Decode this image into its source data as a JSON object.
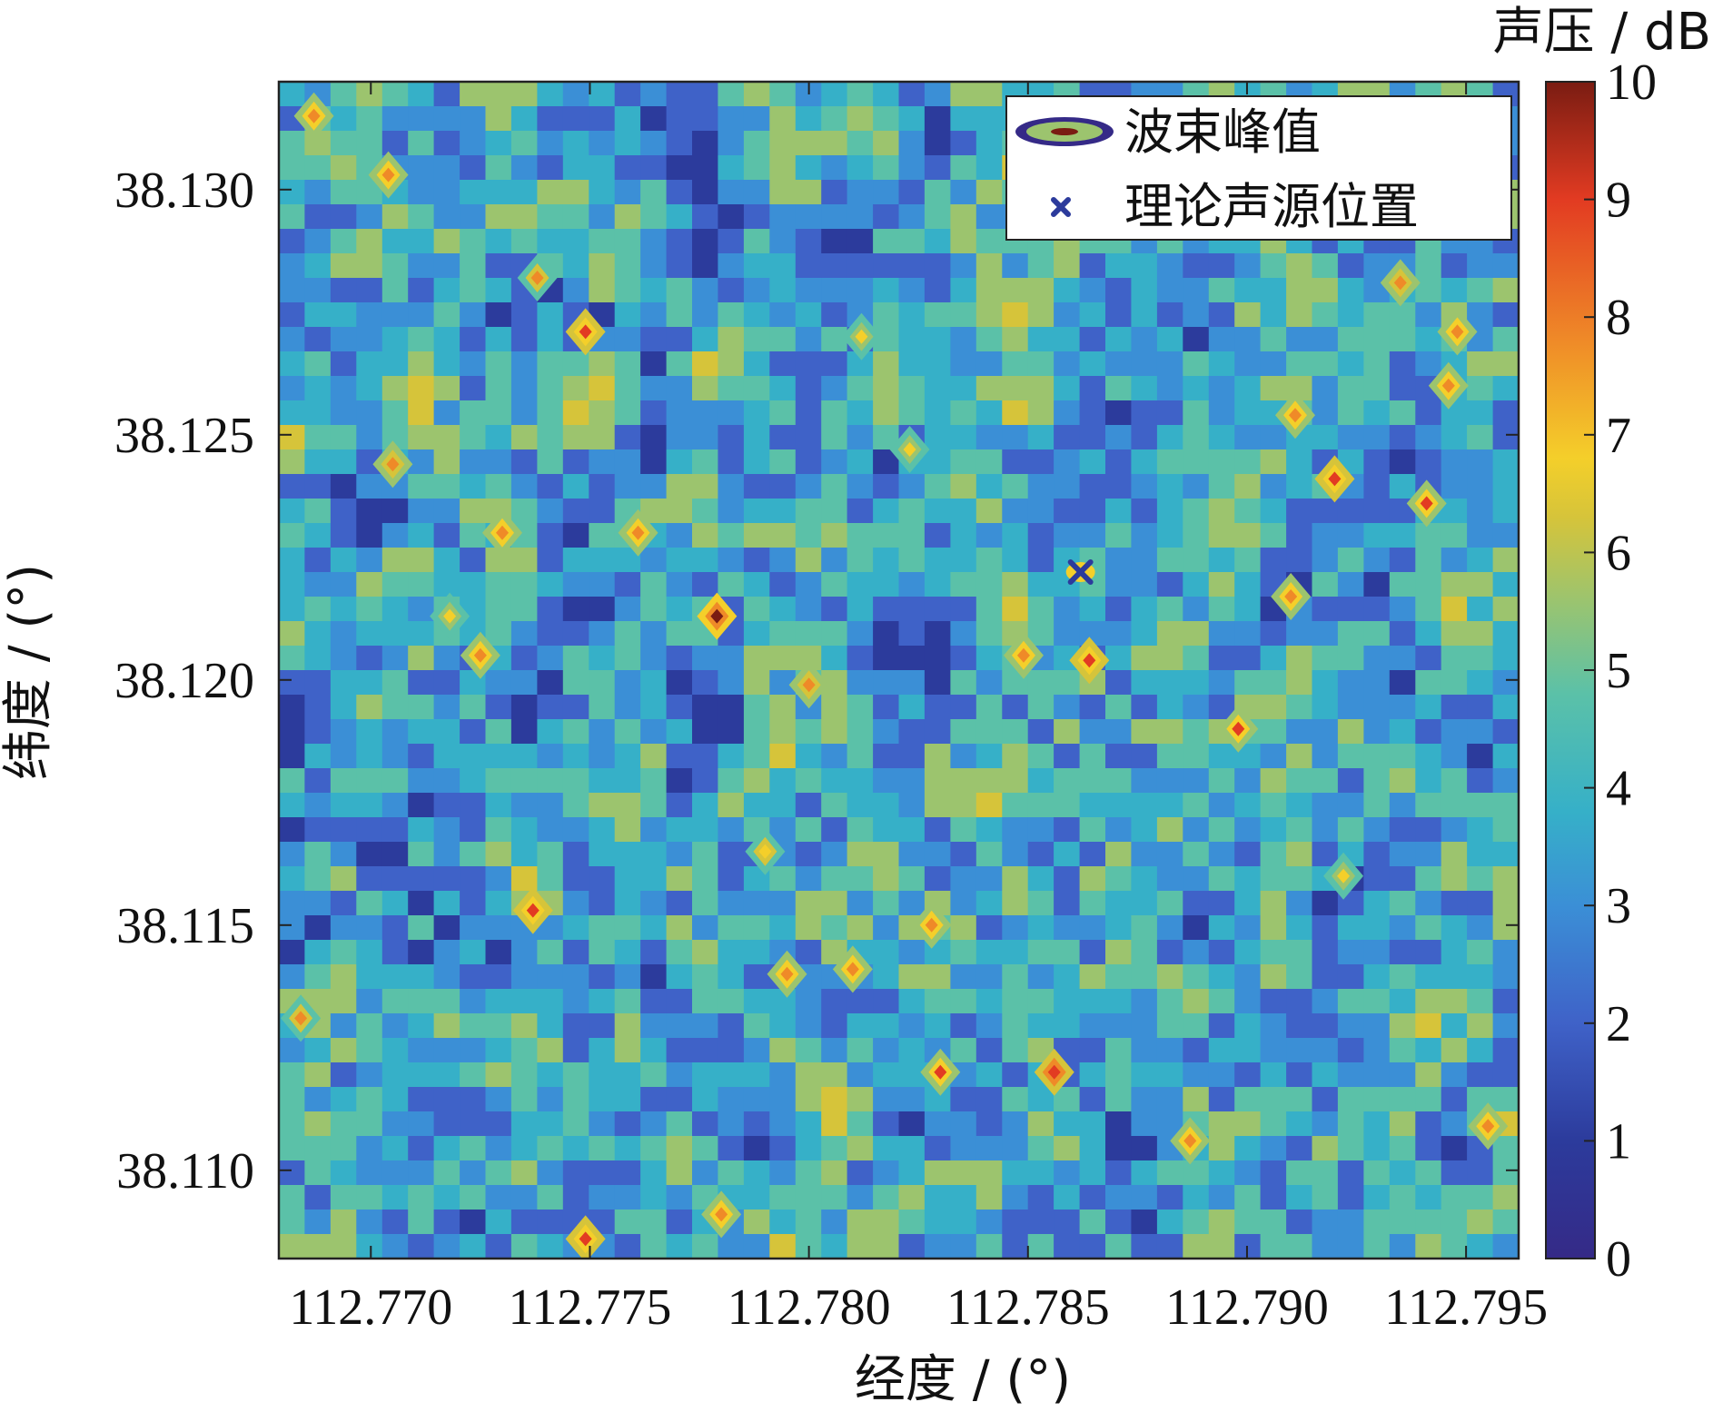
{
  "chart_data": {
    "type": "heatmap",
    "xlabel": "经度 / (°)",
    "ylabel": "纬度 / (°)",
    "x_ticks": [
      "112.770",
      "112.775",
      "112.780",
      "112.785",
      "112.790",
      "112.795"
    ],
    "x_tick_values": [
      112.77,
      112.775,
      112.78,
      112.785,
      112.79,
      112.795
    ],
    "y_ticks": [
      "38.130",
      "38.125",
      "38.120",
      "38.115",
      "38.110"
    ],
    "y_tick_values": [
      38.13,
      38.125,
      38.12,
      38.115,
      38.11
    ],
    "xlim": [
      112.7679,
      112.7962
    ],
    "ylim": [
      38.1082,
      38.1322
    ],
    "colorbar": {
      "title": "声压 / dB",
      "range": [
        0,
        10
      ],
      "ticks": [
        "0",
        "1",
        "2",
        "3",
        "4",
        "5",
        "6",
        "7",
        "8",
        "9",
        "10"
      ],
      "colors": [
        "#352a87",
        "#2c3b9c",
        "#3f62c8",
        "#3b8fd6",
        "#36b0c8",
        "#5bc1a8",
        "#9cc46e",
        "#d6c43a",
        "#f4cf2a",
        "#ef8a28",
        "#e23b22",
        "#7a1c12"
      ]
    },
    "legend": [
      {
        "label": "波束峰值",
        "icon": "ellipse-contour-icon"
      },
      {
        "label": "理论声源位置",
        "icon": "x-marker-icon"
      }
    ],
    "legend_position": "top-right",
    "source_marker": {
      "x": 112.7862,
      "y": 38.1222,
      "color": "#2c3b9c"
    },
    "grid": false,
    "peaks": [
      {
        "x": 112.7687,
        "y": 38.1315,
        "v": 8.2
      },
      {
        "x": 112.7704,
        "y": 38.1303,
        "v": 8.0
      },
      {
        "x": 112.7738,
        "y": 38.1282,
        "v": 7.5
      },
      {
        "x": 112.7749,
        "y": 38.1271,
        "v": 8.5
      },
      {
        "x": 112.7705,
        "y": 38.1244,
        "v": 7.8
      },
      {
        "x": 112.773,
        "y": 38.123,
        "v": 8.0
      },
      {
        "x": 112.7761,
        "y": 38.123,
        "v": 8.3
      },
      {
        "x": 112.7779,
        "y": 38.1213,
        "v": 9.3
      },
      {
        "x": 112.7725,
        "y": 38.1205,
        "v": 8.0
      },
      {
        "x": 112.78,
        "y": 38.1199,
        "v": 7.8
      },
      {
        "x": 112.7812,
        "y": 38.127,
        "v": 7.0
      },
      {
        "x": 112.7823,
        "y": 38.1247,
        "v": 6.8
      },
      {
        "x": 112.7849,
        "y": 38.1205,
        "v": 8.2
      },
      {
        "x": 112.7864,
        "y": 38.1204,
        "v": 8.6
      },
      {
        "x": 112.7898,
        "y": 38.119,
        "v": 8.4
      },
      {
        "x": 112.791,
        "y": 38.1217,
        "v": 8.0
      },
      {
        "x": 112.7941,
        "y": 38.1236,
        "v": 8.4
      },
      {
        "x": 112.792,
        "y": 38.1241,
        "v": 8.5
      },
      {
        "x": 112.7948,
        "y": 38.1271,
        "v": 8.0
      },
      {
        "x": 112.7946,
        "y": 38.126,
        "v": 8.2
      },
      {
        "x": 112.7935,
        "y": 38.1281,
        "v": 7.8
      },
      {
        "x": 112.7911,
        "y": 38.1254,
        "v": 8.0
      },
      {
        "x": 112.7737,
        "y": 38.1153,
        "v": 8.5
      },
      {
        "x": 112.7795,
        "y": 38.114,
        "v": 8.0
      },
      {
        "x": 112.781,
        "y": 38.1141,
        "v": 8.3
      },
      {
        "x": 112.7828,
        "y": 38.115,
        "v": 8.2
      },
      {
        "x": 112.7856,
        "y": 38.112,
        "v": 8.8
      },
      {
        "x": 112.783,
        "y": 38.112,
        "v": 8.4
      },
      {
        "x": 112.778,
        "y": 38.1091,
        "v": 8.1
      },
      {
        "x": 112.7749,
        "y": 38.1086,
        "v": 8.5
      },
      {
        "x": 112.7887,
        "y": 38.1106,
        "v": 8.2
      },
      {
        "x": 112.7955,
        "y": 38.1109,
        "v": 8.0
      },
      {
        "x": 112.7684,
        "y": 38.1131,
        "v": 7.5
      },
      {
        "x": 112.7718,
        "y": 38.1213,
        "v": 7.0
      },
      {
        "x": 112.779,
        "y": 38.1165,
        "v": 7.2
      },
      {
        "x": 112.7922,
        "y": 38.116,
        "v": 7.0
      }
    ]
  }
}
